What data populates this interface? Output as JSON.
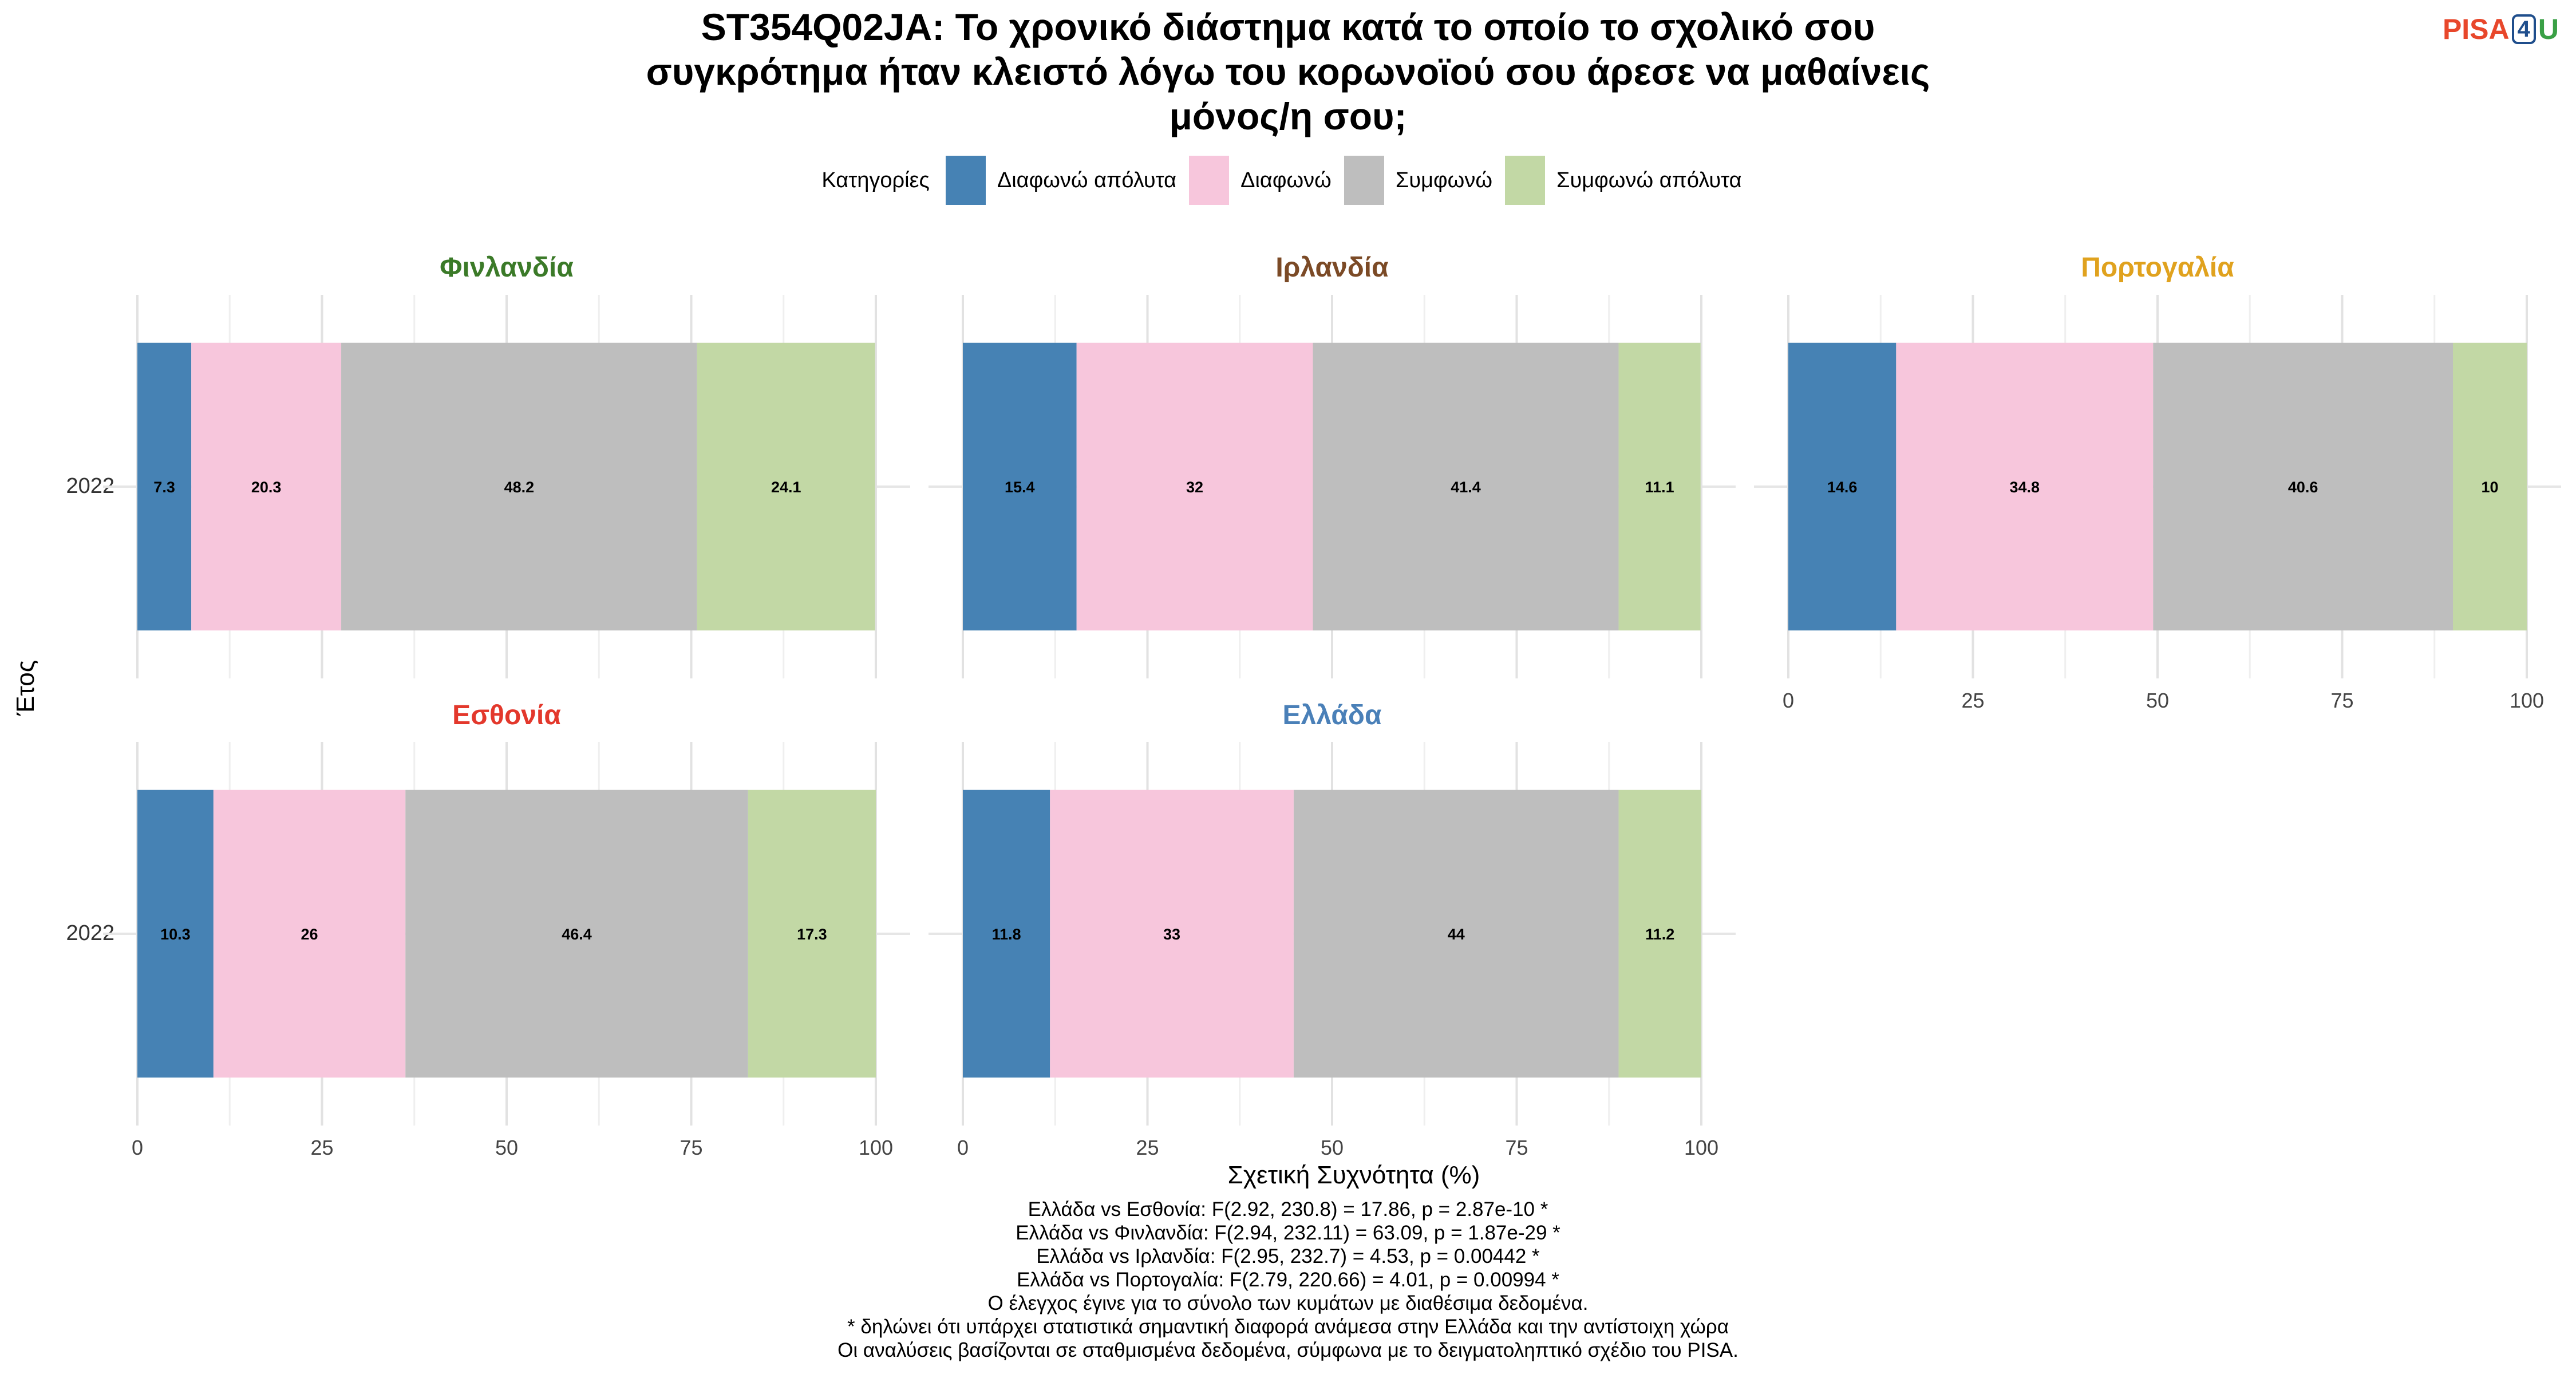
{
  "title_lines": [
    "ST354Q02JA: Το χρονικό διάστημα κατά το οποίο το σχολικό σου",
    "συγκρότημα ήταν κλειστό λόγω του κορωνοϊού σου άρεσε να μαθαίνεις",
    "μόνος/η σου;"
  ],
  "logo": {
    "pisa": "PISA",
    "four": "4",
    "u": "U"
  },
  "legend": {
    "title": "Κατηγορίες",
    "items": [
      {
        "label": "Διαφωνώ απόλυτα",
        "color": "#4682B4"
      },
      {
        "label": "Διαφωνώ",
        "color": "#F7C6DC"
      },
      {
        "label": "Συμφωνώ",
        "color": "#BEBEBE"
      },
      {
        "label": "Συμφωνώ απόλυτα",
        "color": "#C2D8A5"
      }
    ]
  },
  "x_axis_title": "Σχετική Συχνότητα (%)",
  "y_axis_title": "Έτος",
  "x_ticks": [
    "0",
    "25",
    "50",
    "75",
    "100"
  ],
  "chart_data": [
    {
      "type": "bar",
      "orientation": "horizontal",
      "stacked": true,
      "facet": "Φινλανδία",
      "title_color": "#3B7A28",
      "categories": [
        "2022"
      ],
      "xlim": [
        0,
        100
      ],
      "series": [
        {
          "name": "Διαφωνώ απόλυτα",
          "values": [
            7.3
          ],
          "labels": [
            "7.3"
          ]
        },
        {
          "name": "Διαφωνώ",
          "values": [
            20.3
          ],
          "labels": [
            "20.3"
          ]
        },
        {
          "name": "Συμφωνώ",
          "values": [
            48.2
          ],
          "labels": [
            "48.2"
          ]
        },
        {
          "name": "Συμφωνώ απόλυτα",
          "values": [
            24.1
          ],
          "labels": [
            "24.1"
          ]
        }
      ]
    },
    {
      "type": "bar",
      "orientation": "horizontal",
      "stacked": true,
      "facet": "Ιρλανδία",
      "title_color": "#7B4A26",
      "categories": [
        "2022"
      ],
      "xlim": [
        0,
        100
      ],
      "series": [
        {
          "name": "Διαφωνώ απόλυτα",
          "values": [
            15.4
          ],
          "labels": [
            "15.4"
          ]
        },
        {
          "name": "Διαφωνώ",
          "values": [
            32
          ],
          "labels": [
            "32"
          ]
        },
        {
          "name": "Συμφωνώ",
          "values": [
            41.4
          ],
          "labels": [
            "41.4"
          ]
        },
        {
          "name": "Συμφωνώ απόλυτα",
          "values": [
            11.1
          ],
          "labels": [
            "11.1"
          ]
        }
      ]
    },
    {
      "type": "bar",
      "orientation": "horizontal",
      "stacked": true,
      "facet": "Πορτογαλία",
      "title_color": "#E0A21E",
      "categories": [
        "2022"
      ],
      "xlim": [
        0,
        100
      ],
      "series": [
        {
          "name": "Διαφωνώ απόλυτα",
          "values": [
            14.6
          ],
          "labels": [
            "14.6"
          ]
        },
        {
          "name": "Διαφωνώ",
          "values": [
            34.8
          ],
          "labels": [
            "34.8"
          ]
        },
        {
          "name": "Συμφωνώ",
          "values": [
            40.6
          ],
          "labels": [
            "40.6"
          ]
        },
        {
          "name": "Συμφωνώ απόλυτα",
          "values": [
            10
          ],
          "labels": [
            "10"
          ]
        }
      ]
    },
    {
      "type": "bar",
      "orientation": "horizontal",
      "stacked": true,
      "facet": "Εσθονία",
      "title_color": "#E3382C",
      "categories": [
        "2022"
      ],
      "xlim": [
        0,
        100
      ],
      "series": [
        {
          "name": "Διαφωνώ απόλυτα",
          "values": [
            10.3
          ],
          "labels": [
            "10.3"
          ]
        },
        {
          "name": "Διαφωνώ",
          "values": [
            26
          ],
          "labels": [
            "26"
          ]
        },
        {
          "name": "Συμφωνώ",
          "values": [
            46.4
          ],
          "labels": [
            "46.4"
          ]
        },
        {
          "name": "Συμφωνώ απόλυτα",
          "values": [
            17.3
          ],
          "labels": [
            "17.3"
          ]
        }
      ]
    },
    {
      "type": "bar",
      "orientation": "horizontal",
      "stacked": true,
      "facet": "Ελλάδα",
      "title_color": "#4A80B8",
      "categories": [
        "2022"
      ],
      "xlim": [
        0,
        100
      ],
      "series": [
        {
          "name": "Διαφωνώ απόλυτα",
          "values": [
            11.8
          ],
          "labels": [
            "11.8"
          ]
        },
        {
          "name": "Διαφωνώ",
          "values": [
            33
          ],
          "labels": [
            "33"
          ]
        },
        {
          "name": "Συμφωνώ",
          "values": [
            44
          ],
          "labels": [
            "44"
          ]
        },
        {
          "name": "Συμφωνώ απόλυτα",
          "values": [
            11.2
          ],
          "labels": [
            "11.2"
          ]
        }
      ]
    }
  ],
  "caption_lines": [
    "Ελλάδα vs Εσθονία: F(2.92, 230.8) = 17.86, p = 2.87e-10 *",
    "Ελλάδα vs Φινλανδία: F(2.94, 232.11) = 63.09, p = 1.87e-29 *",
    "Ελλάδα vs Ιρλανδία: F(2.95, 232.7) = 4.53, p = 0.00442 *",
    "Ελλάδα vs Πορτογαλία: F(2.79, 220.66) = 4.01, p = 0.00994 *",
    "Ο έλεγχος έγινε για το σύνολο των κυμάτων με διαθέσιμα δεδομένα.",
    "* δηλώνει ότι υπάρχει στατιστικά σημαντική διαφορά ανάμεσα στην Ελλάδα και την αντίστοιχη χώρα",
    "Οι αναλύσεις βασίζονται σε σταθμισμένα δεδομένα, σύμφωνα με το δειγματοληπτικό σχέδιο του PISA."
  ]
}
